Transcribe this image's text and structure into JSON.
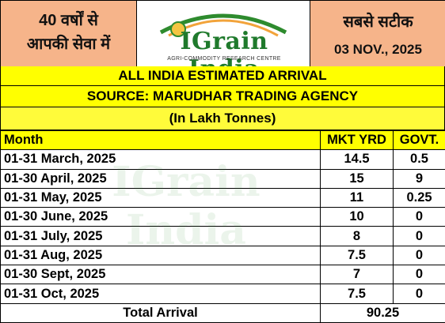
{
  "header": {
    "left_line1": "40 वर्षों से",
    "left_line2": "आपकी सेवा में",
    "right_line1": "सबसे सटीक",
    "date": "03 NOV., 2025"
  },
  "logo": {
    "name": "IGrain India",
    "tagline": "AGRI-COMMODITY RESEARCH CENTRE"
  },
  "banners": {
    "title": "ALL INDIA ESTIMATED ARRIVAL",
    "source": "SOURCE: MARUDHAR TRADING AGENCY",
    "unit": "(In Lakh Tonnes)"
  },
  "table": {
    "columns": [
      "Month",
      "MKT YRD",
      "GOVT."
    ],
    "rows": [
      {
        "month": "01-31 March, 2025",
        "mkt": "14.5",
        "govt": "0.5"
      },
      {
        "month": "01-30 April, 2025",
        "mkt": "15",
        "govt": "9"
      },
      {
        "month": "01-31 May, 2025",
        "mkt": "11",
        "govt": "0.25"
      },
      {
        "month": "01-30 June, 2025",
        "mkt": "10",
        "govt": "0"
      },
      {
        "month": "01-31 July, 2025",
        "mkt": "8",
        "govt": "0"
      },
      {
        "month": "01-31 Aug, 2025",
        "mkt": "7.5",
        "govt": "0"
      },
      {
        "month": "01-30 Sept, 2025",
        "mkt": "7",
        "govt": "0"
      },
      {
        "month": "01-31 Oct, 2025",
        "mkt": "7.5",
        "govt": "0"
      }
    ],
    "total_label": "Total Arrival",
    "total_value": "90.25"
  },
  "colors": {
    "banner": "#ffff00",
    "header_side": "#f6b48a",
    "logo_green": "#1f7a2c"
  }
}
